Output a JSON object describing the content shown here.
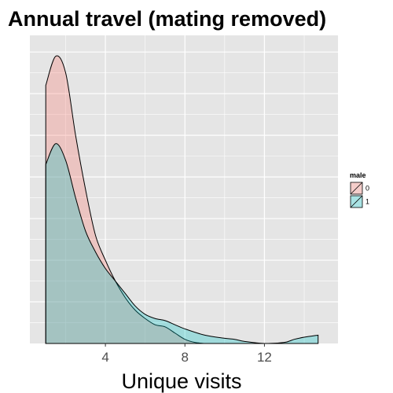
{
  "chart_data": {
    "type": "area",
    "title": "Annual travel (mating removed)",
    "xlabel": "Unique visits",
    "ylabel": "",
    "xlim": [
      0.2,
      15.7
    ],
    "ylim": [
      0,
      1.48
    ],
    "x_ticks": [
      4,
      8,
      12
    ],
    "x_tick_labels": [
      "4",
      "8",
      "12"
    ],
    "y_ticks": [
      0.2,
      0.4,
      0.6,
      0.8,
      1.0,
      1.2,
      1.4
    ],
    "grid": true,
    "panel_background": "#e5e5e5",
    "grid_color": "#ffffff",
    "legend": {
      "title": "male",
      "position": "right",
      "entries": [
        {
          "label": "0",
          "fill": "#f8766d"
        },
        {
          "label": "1",
          "fill": "#00bfc4"
        }
      ]
    },
    "series": [
      {
        "name": "0",
        "fill": "#f8766d",
        "alpha": 0.3,
        "x": [
          1.0,
          1.5,
          2.0,
          2.5,
          3.0,
          3.5,
          4.0,
          4.5,
          5.0,
          5.5,
          6.0,
          6.5,
          7.0,
          7.5,
          8.0,
          8.5,
          9.0
        ],
        "y": [
          1.24,
          1.38,
          1.3,
          1.0,
          0.74,
          0.52,
          0.4,
          0.3,
          0.22,
          0.16,
          0.12,
          0.09,
          0.08,
          0.05,
          0.02,
          0.005,
          0.0
        ]
      },
      {
        "name": "1",
        "fill": "#00bfc4",
        "alpha": 0.3,
        "x": [
          1.0,
          1.5,
          2.0,
          2.5,
          3.0,
          3.5,
          4.0,
          4.5,
          5.0,
          5.5,
          6.0,
          6.5,
          7.0,
          7.5,
          8.0,
          9.0,
          10.0,
          10.5,
          11.0,
          12.0,
          13.0,
          13.5,
          14.0,
          14.7
        ],
        "y": [
          0.86,
          0.96,
          0.88,
          0.7,
          0.54,
          0.44,
          0.36,
          0.3,
          0.24,
          0.18,
          0.14,
          0.12,
          0.11,
          0.09,
          0.07,
          0.04,
          0.025,
          0.02,
          0.01,
          0.0,
          0.005,
          0.02,
          0.03,
          0.04
        ]
      }
    ]
  }
}
